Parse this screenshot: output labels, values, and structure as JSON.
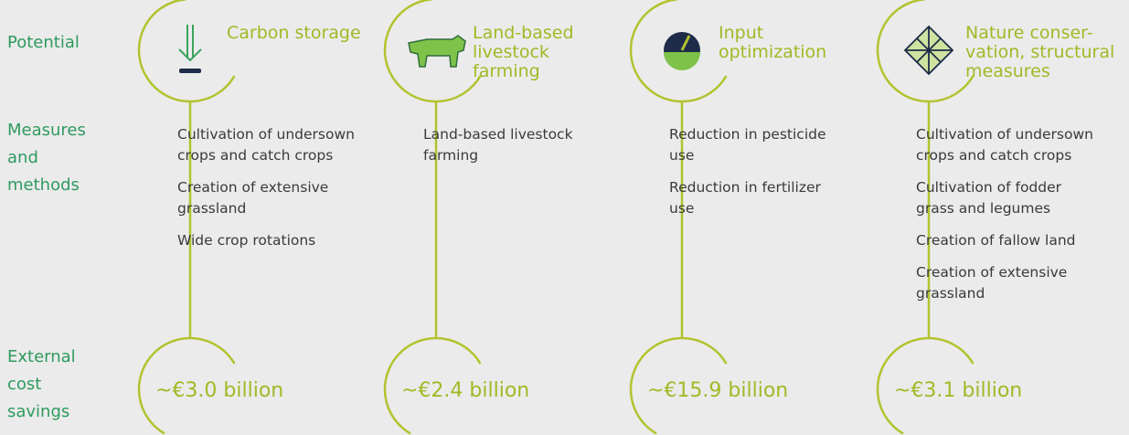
{
  "row_labels": [
    [
      "Potential"
    ],
    [
      "Measures",
      "and",
      "methods"
    ],
    [
      "External",
      "cost",
      "savings"
    ]
  ],
  "columns": [
    {
      "title": [
        "Carbon storage"
      ],
      "measures": [
        [
          "Cultivation of undersown",
          "crops and catch crops"
        ],
        [
          "Creation of extensive",
          "grassland"
        ],
        [
          "Wide crop rotations"
        ]
      ],
      "savings": "~€3.0 billion"
    },
    {
      "title": [
        "Land-based",
        "livestock",
        "farming"
      ],
      "measures": [
        [
          "Land-based livestock",
          "farming"
        ]
      ],
      "savings": "~€2.4 billion"
    },
    {
      "title": [
        "Input",
        "optimization"
      ],
      "measures": [
        [
          "Reduction in pesticide",
          "use"
        ],
        [
          "Reduction in fertilizer",
          "use"
        ]
      ],
      "savings": "~€15.9 billion"
    },
    {
      "title": [
        "Nature conser-",
        "vation, structural",
        "measures"
      ],
      "measures": [
        [
          "Cultivation of undersown",
          "crops and catch crops"
        ],
        [
          "Cultivation of fodder",
          "grass and legumes"
        ],
        [
          "Creation of fallow land"
        ],
        [
          "Creation of extensive",
          "grassland"
        ]
      ],
      "savings": "~€3.1 billion"
    }
  ]
}
